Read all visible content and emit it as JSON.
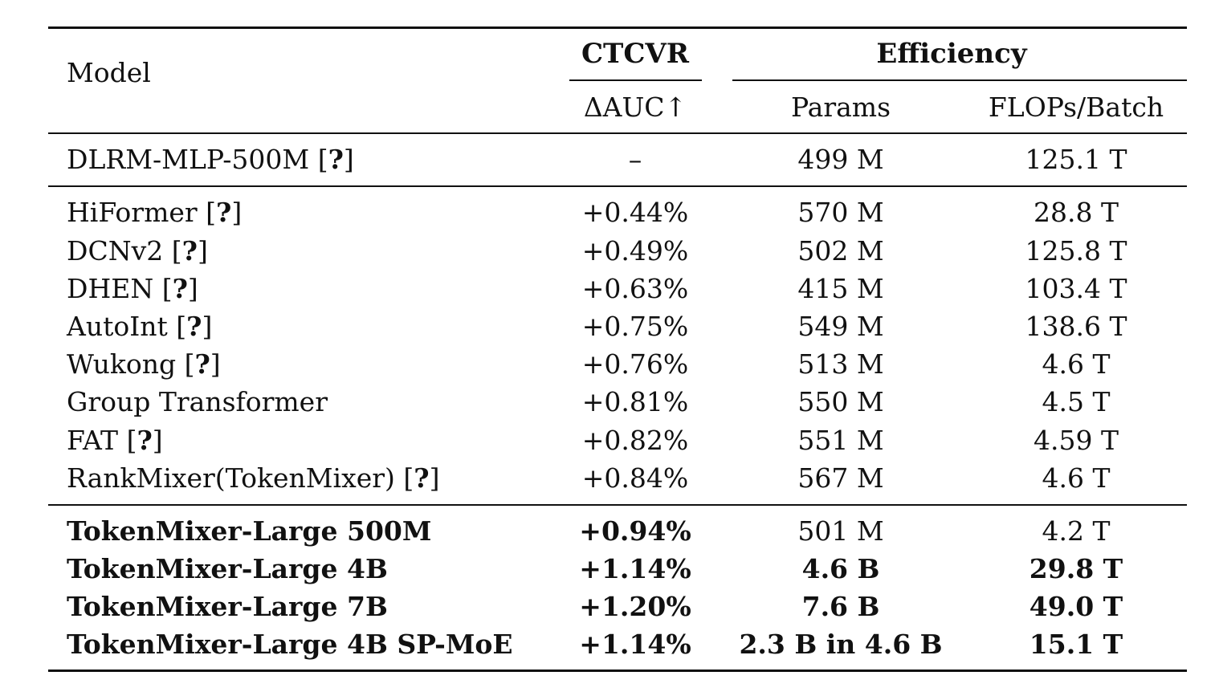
{
  "header": {
    "model_label": "Model",
    "group_ctcvr": "CTCVR",
    "group_efficiency": "Efficiency",
    "col_auc": "ΔAUC↑",
    "col_params": "Params",
    "col_flops": "FLOPs/Batch"
  },
  "citation_mark": "?",
  "baseline": {
    "model": "DLRM-MLP-500M",
    "cite": true,
    "auc": "–",
    "params": "499 M",
    "flops": "125.1 T"
  },
  "rows": [
    {
      "model": "HiFormer",
      "cite": true,
      "auc": "+0.44%",
      "params": "570 M",
      "flops": "28.8 T"
    },
    {
      "model": "DCNv2",
      "cite": true,
      "auc": "+0.49%",
      "params": "502 M",
      "flops": "125.8 T"
    },
    {
      "model": "DHEN",
      "cite": true,
      "auc": "+0.63%",
      "params": "415 M",
      "flops": "103.4 T"
    },
    {
      "model": "AutoInt",
      "cite": true,
      "auc": "+0.75%",
      "params": "549 M",
      "flops": "138.6 T"
    },
    {
      "model": "Wukong",
      "cite": true,
      "auc": "+0.76%",
      "params": "513 M",
      "flops": "4.6 T"
    },
    {
      "model": "Group Transformer",
      "cite": false,
      "auc": "+0.81%",
      "params": "550 M",
      "flops": "4.5 T"
    },
    {
      "model": "FAT",
      "cite": true,
      "auc": "+0.82%",
      "params": "551 M",
      "flops": "4.59 T"
    },
    {
      "model": "RankMixer(TokenMixer)",
      "cite": true,
      "auc": "+0.84%",
      "params": "567 M",
      "flops": "4.6 T"
    }
  ],
  "ours": [
    {
      "model": "TokenMixer-Large 500M",
      "auc": "+0.94%",
      "params": "501 M",
      "flops": "4.2 T",
      "bold_params": false,
      "bold_flops": false
    },
    {
      "model": "TokenMixer-Large 4B",
      "auc": "+1.14%",
      "params": "4.6 B",
      "flops": "29.8 T",
      "bold_params": true,
      "bold_flops": true
    },
    {
      "model": "TokenMixer-Large 7B",
      "auc": "+1.20%",
      "params": "7.6 B",
      "flops": "49.0 T",
      "bold_params": true,
      "bold_flops": true
    },
    {
      "model": "TokenMixer-Large 4B SP-MoE",
      "auc": "+1.14%",
      "params": "2.3 B in 4.6 B",
      "flops": "15.1 T",
      "bold_params": true,
      "bold_flops": true
    }
  ]
}
